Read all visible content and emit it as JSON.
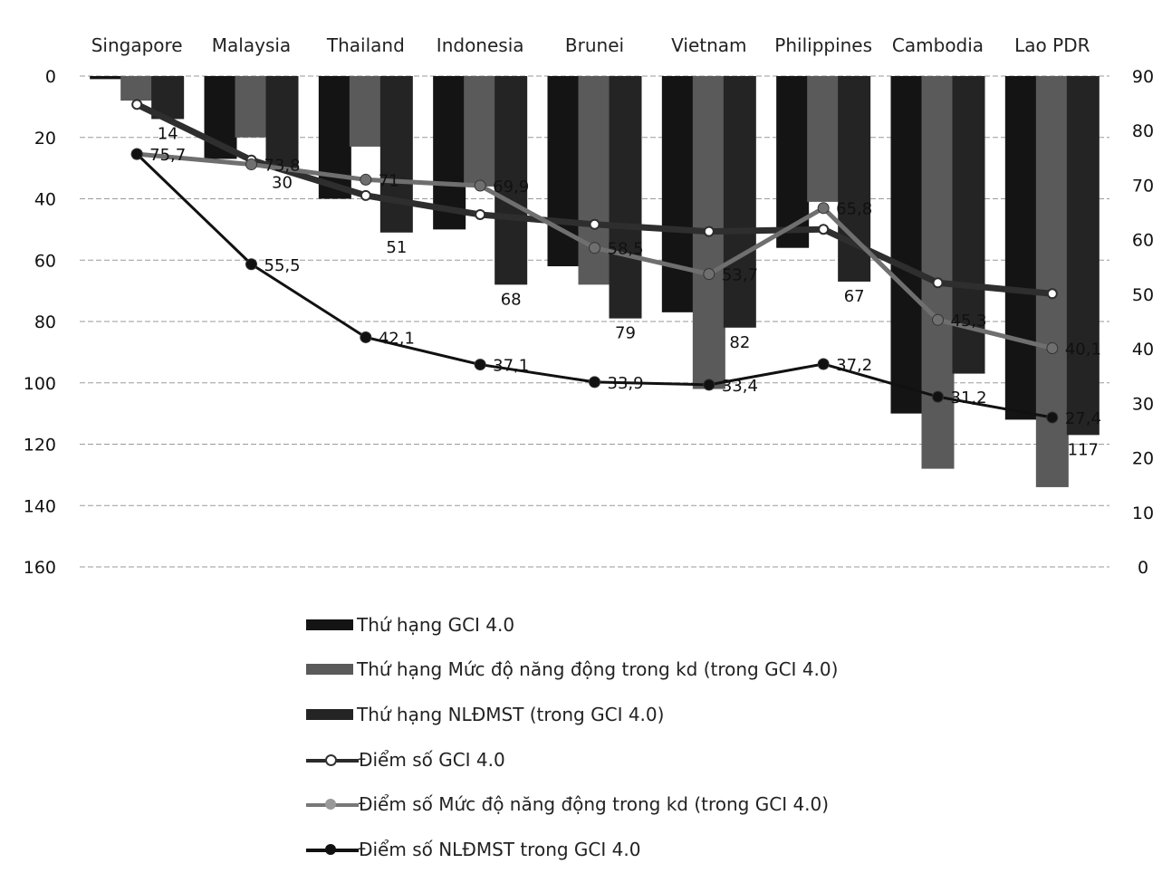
{
  "chart_data": {
    "type": "bar",
    "categories": [
      "Singapore",
      "Malaysia",
      "Thailand",
      "Indonesia",
      "Brunei",
      "Vietnam",
      "Philippines",
      "Cambodia",
      "Lao PDR"
    ],
    "left_axis": {
      "ticks": [
        "0",
        "20",
        "40",
        "60",
        "80",
        "100",
        "120",
        "140",
        "160"
      ],
      "ylim": [
        0,
        160
      ],
      "inverted": true
    },
    "right_axis": {
      "ticks": [
        "0",
        "10",
        "20",
        "30",
        "40",
        "50",
        "60",
        "70",
        "80",
        "90"
      ],
      "ylim": [
        0,
        90
      ]
    },
    "grid": true,
    "bar_series": [
      {
        "name": "Thứ hạng GCI 4.0",
        "axis": "left",
        "color": "#141414",
        "values": [
          1,
          27,
          40,
          50,
          62,
          77,
          56,
          110,
          112
        ]
      },
      {
        "name": "Thứ hạng Mức độ năng động trong kd (trong GCI 4.0)",
        "axis": "left",
        "color": "#5a5a5a",
        "values": [
          8,
          20,
          23,
          36,
          68,
          102,
          41,
          128,
          134
        ]
      },
      {
        "name": "Thứ hạng NLĐMST (trong GCI 4.0)",
        "axis": "left",
        "color": "#242424",
        "values": [
          14,
          30,
          51,
          68,
          79,
          82,
          67,
          97,
          117
        ],
        "labels": [
          "14",
          "30",
          "51",
          "68",
          "79",
          "82",
          "67",
          "",
          "117"
        ]
      }
    ],
    "line_series": [
      {
        "name": "Điểm số GCI 4.0",
        "axis": "right",
        "color": "#2e2e2e",
        "marker": "open",
        "values": [
          84.8,
          74.6,
          68.1,
          64.6,
          62.8,
          61.5,
          61.9,
          52.1,
          50.1
        ],
        "labels": [
          "",
          "",
          "",
          "",
          "",
          "",
          "",
          "",
          ""
        ]
      },
      {
        "name": "Điểm số Mức độ năng động trong kd (trong GCI 4.0)",
        "axis": "right",
        "color": "#6f6f6f",
        "marker": "filled",
        "values": [
          75.7,
          73.8,
          71.0,
          69.9,
          58.5,
          53.7,
          65.8,
          45.3,
          40.1
        ],
        "labels": [
          "75,7",
          "73,8",
          "71",
          "69,9",
          "58,5",
          "53,7",
          "65,8",
          "45,3",
          "40,1"
        ]
      },
      {
        "name": "Điểm số NLĐMST trong GCI 4.0",
        "axis": "right",
        "color": "#111111",
        "marker": "filled",
        "values": [
          75.7,
          55.5,
          42.1,
          37.1,
          33.9,
          33.4,
          37.2,
          31.2,
          27.4
        ],
        "labels": [
          "",
          "55,5",
          "42,1",
          "37,1",
          "33,9",
          "33,4",
          "37,2",
          "31,2",
          "27,4"
        ]
      }
    ],
    "legend": [
      "Thứ hạng GCI 4.0",
      "Thứ hạng Mức độ năng động trong kd (trong GCI 4.0)",
      "Thứ hạng NLĐMST (trong GCI 4.0)",
      "Điểm số GCI 4.0",
      "Điểm số Mức độ năng động trong kd (trong GCI 4.0)",
      "Điểm số NLĐMST trong GCI 4.0"
    ],
    "legend_position": "bottom"
  }
}
